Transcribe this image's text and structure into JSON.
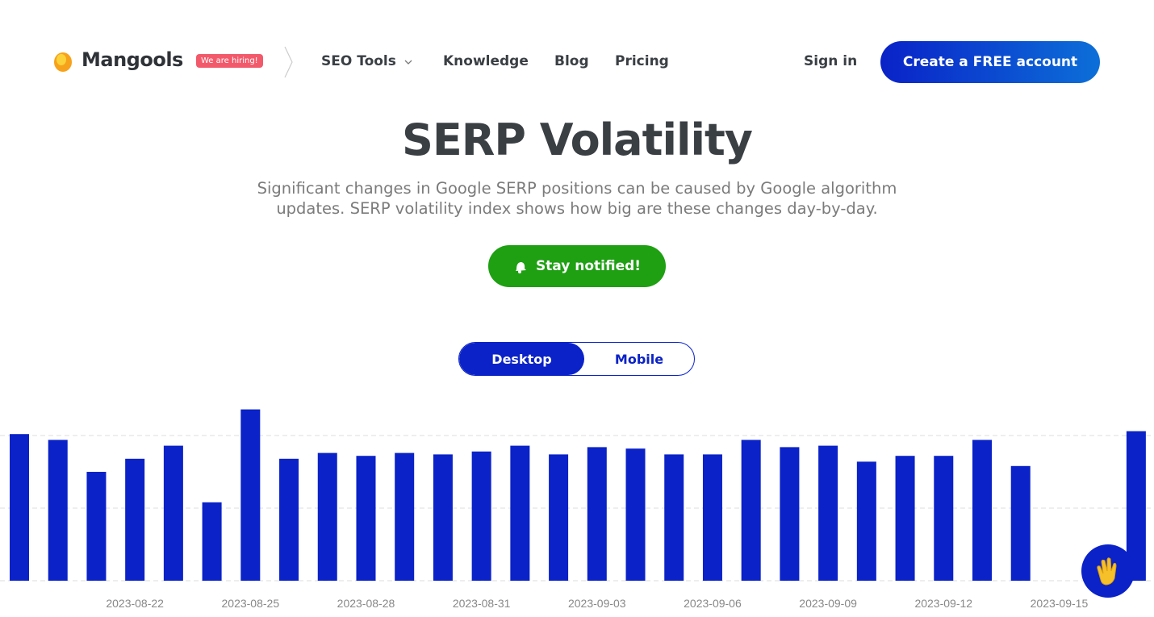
{
  "header": {
    "logo": "Mangools",
    "badge": "We are hiring!",
    "nav": [
      "SEO Tools",
      "Knowledge",
      "Blog",
      "Pricing"
    ],
    "sign_in": "Sign in",
    "cta": "Create a FREE account"
  },
  "hero": {
    "title": "SERP Volatility",
    "subtitle": "Significant changes in Google SERP positions can be caused by Google algorithm updates. SERP volatility index shows how big are these changes day-by-day.",
    "button": "Stay notified!"
  },
  "toggle": {
    "options": [
      "Desktop",
      "Mobile"
    ],
    "active": "Desktop"
  },
  "chart_data": {
    "type": "bar",
    "color": "#0a22c8",
    "grid": true,
    "categories": [
      null,
      null,
      null,
      "2023-08-22",
      null,
      null,
      "2023-08-25",
      null,
      null,
      "2023-08-28",
      null,
      null,
      "2023-08-31",
      null,
      null,
      "2023-09-03",
      null,
      null,
      "2023-09-06",
      null,
      null,
      "2023-09-09",
      null,
      null,
      "2023-09-12",
      null,
      null,
      "2023-09-15",
      null,
      null
    ],
    "values": [
      10.1,
      9.7,
      7.5,
      8.4,
      9.3,
      5.4,
      11.8,
      8.4,
      8.8,
      8.6,
      8.8,
      8.7,
      8.9,
      9.3,
      8.7,
      9.2,
      9.1,
      8.7,
      8.7,
      9.7,
      9.2,
      9.3,
      8.2,
      8.6,
      8.6,
      9.7,
      7.9,
      null,
      null,
      10.3
    ],
    "ylim": [
      0,
      12
    ],
    "yticks": [
      0,
      5,
      10
    ]
  }
}
